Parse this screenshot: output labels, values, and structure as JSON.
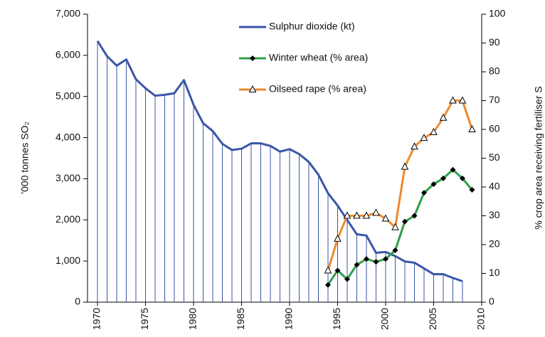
{
  "chart_data": {
    "type": "line",
    "ylabel": "’000 tonnes SO₂",
    "y2label": "% crop area receiving fertiliser S",
    "x": [
      1970,
      1971,
      1972,
      1973,
      1974,
      1975,
      1976,
      1977,
      1978,
      1979,
      1980,
      1981,
      1982,
      1983,
      1984,
      1985,
      1986,
      1987,
      1988,
      1989,
      1990,
      1991,
      1992,
      1993,
      1994,
      1995,
      1996,
      1997,
      1998,
      1999,
      2000,
      2001,
      2002,
      2003,
      2004,
      2005,
      2006,
      2007,
      2008,
      2009
    ],
    "xlim": [
      1970,
      2010
    ],
    "xticks": [
      1970,
      1975,
      1980,
      1985,
      1990,
      1995,
      2000,
      2005,
      2010
    ],
    "ylim": [
      0,
      7000
    ],
    "yticks": [
      0,
      {
        "value": 1000,
        "label": "1,000"
      },
      {
        "value": 2000,
        "label": "2,000"
      },
      {
        "value": 3000,
        "label": "3,000"
      },
      {
        "value": 4000,
        "label": "4,000"
      },
      {
        "value": 5000,
        "label": "5,000"
      },
      {
        "value": 6000,
        "label": "6,000"
      },
      {
        "value": 7000,
        "label": "7,000"
      }
    ],
    "y2lim": [
      0,
      100
    ],
    "y2ticks": [
      0,
      10,
      20,
      30,
      40,
      50,
      60,
      70,
      80,
      90,
      100
    ],
    "legend": "upper center",
    "series": [
      {
        "name": "Sulphur dioxide (kt)",
        "color": "#3b55a8",
        "marker": "none",
        "droplines": true,
        "values": [
          6350,
          5980,
          5750,
          5900,
          5420,
          5200,
          5020,
          5040,
          5080,
          5400,
          4800,
          4350,
          4160,
          3850,
          3700,
          3730,
          3860,
          3860,
          3800,
          3660,
          3720,
          3600,
          3410,
          3100,
          2650,
          2350,
          2000,
          1650,
          1620,
          1200,
          1220,
          1120,
          990,
          960,
          820,
          680,
          680,
          590,
          510,
          null
        ]
      },
      {
        "name": "Winter wheat (% area)",
        "color": "#2ea048",
        "marker": "diamond",
        "axis": "y2",
        "values": [
          null,
          null,
          null,
          null,
          null,
          null,
          null,
          null,
          null,
          null,
          null,
          null,
          null,
          null,
          null,
          null,
          null,
          null,
          null,
          null,
          null,
          null,
          null,
          null,
          6,
          11,
          8,
          13,
          15,
          14,
          15,
          18,
          28,
          30,
          38,
          41,
          43,
          46,
          43,
          39
        ]
      },
      {
        "name": "Oilseed rape (% area)",
        "color": "#f0892b",
        "marker": "triangle",
        "axis": "y2",
        "values": [
          null,
          null,
          null,
          null,
          null,
          null,
          null,
          null,
          null,
          null,
          null,
          null,
          null,
          null,
          null,
          null,
          null,
          null,
          null,
          null,
          null,
          null,
          null,
          null,
          11,
          22,
          30,
          30,
          30,
          31,
          29,
          26,
          47,
          54,
          57,
          59,
          64,
          70,
          70,
          60
        ]
      }
    ]
  }
}
